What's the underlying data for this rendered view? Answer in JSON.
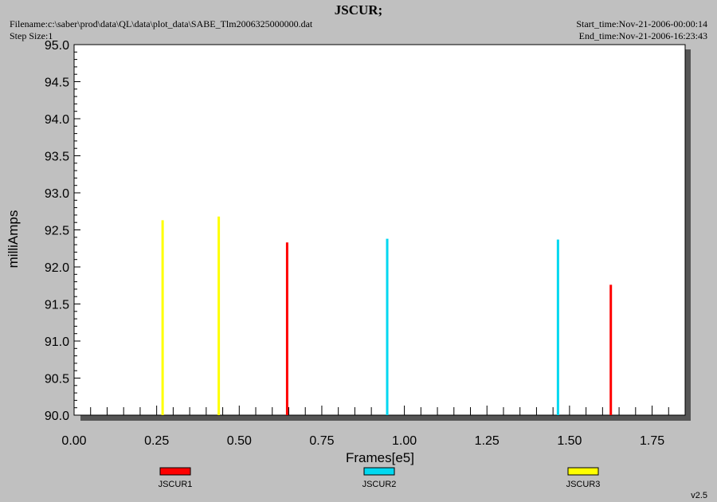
{
  "header": {
    "title": "JSCUR;",
    "filename": "Filename:c:\\saber\\prod\\data\\QL\\data\\plot_data\\SABE_Tlm2006325000000.dat",
    "step_size": "Step Size:1",
    "start_time": "Start_time:Nov-21-2006-00:00:14",
    "end_time": "End_time:Nov-21-2006-16:23:43"
  },
  "footer": {
    "version": "v2.5"
  },
  "chart_data": {
    "type": "bar",
    "title": "JSCUR;",
    "xlabel": "Frames[e5]",
    "ylabel": "milliAmps",
    "xlim": [
      0,
      1.85
    ],
    "ylim": [
      90.0,
      95.0
    ],
    "x_ticks": [
      "0.00",
      "0.25",
      "0.50",
      "0.75",
      "1.00",
      "1.25",
      "1.50",
      "1.75"
    ],
    "y_ticks": [
      "90.0",
      "90.5",
      "91.0",
      "91.5",
      "92.0",
      "92.5",
      "93.0",
      "93.5",
      "94.0",
      "94.5",
      "95.0"
    ],
    "grid": false,
    "legend_position": "bottom",
    "series": [
      {
        "name": "JSCUR1",
        "color": "#ff0000",
        "points": [
          {
            "x": 0.645,
            "y": 92.33
          },
          {
            "x": 1.625,
            "y": 91.76
          }
        ]
      },
      {
        "name": "JSCUR2",
        "color": "#00d8f0",
        "points": [
          {
            "x": 0.948,
            "y": 92.38
          },
          {
            "x": 1.465,
            "y": 92.37
          }
        ]
      },
      {
        "name": "JSCUR3",
        "color": "#ffff00",
        "points": [
          {
            "x": 0.268,
            "y": 92.63
          },
          {
            "x": 0.438,
            "y": 92.68
          }
        ]
      }
    ]
  }
}
